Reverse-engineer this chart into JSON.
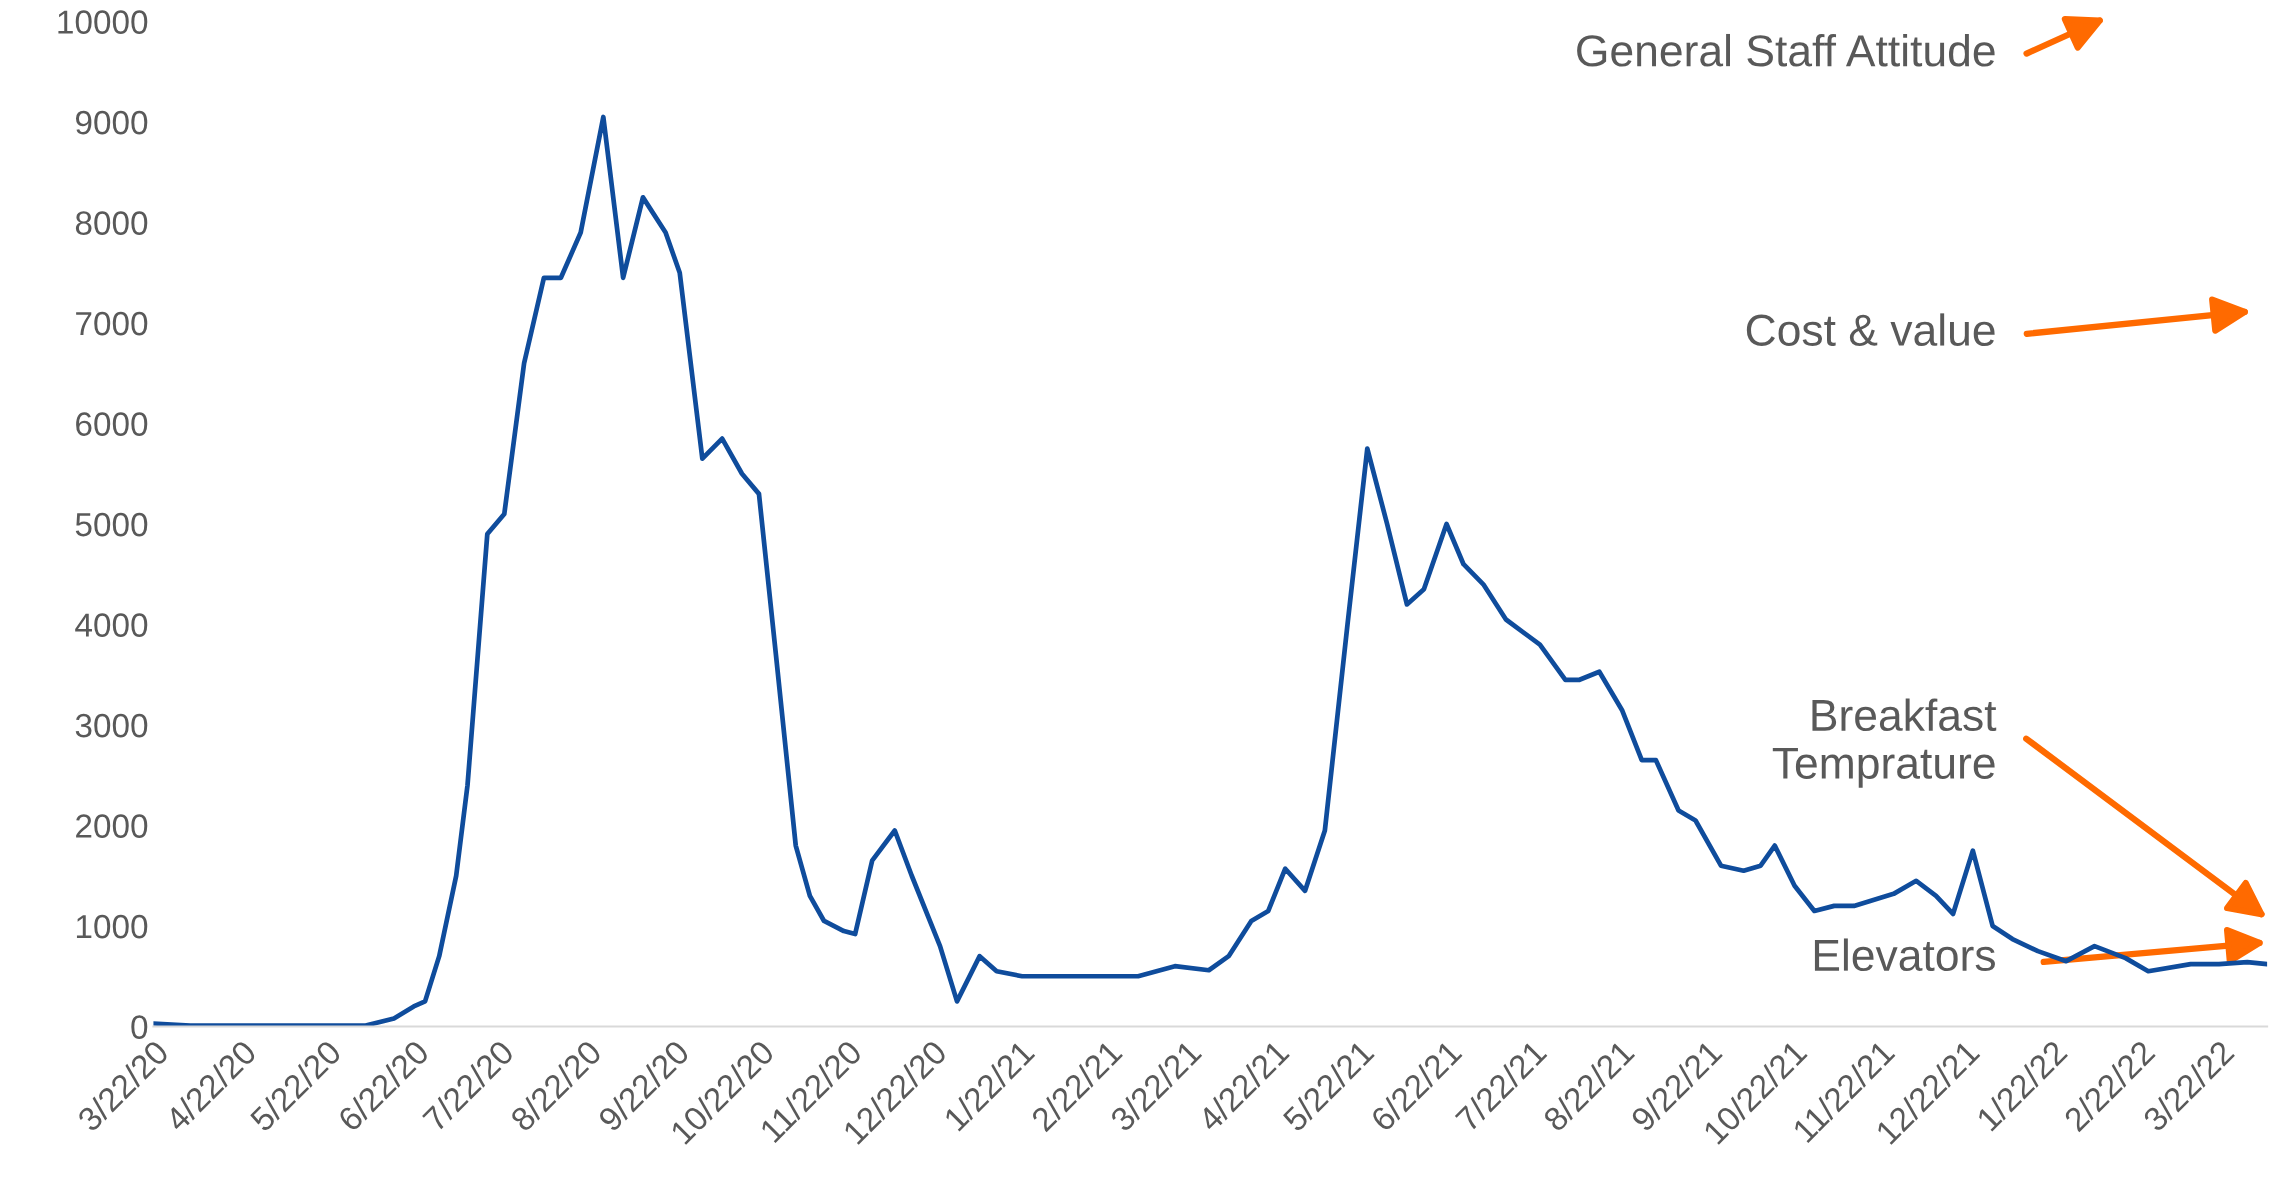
{
  "chart_data": {
    "type": "line",
    "grid": false,
    "legend": false,
    "marker": "none",
    "line_style": "solid",
    "x": [
      "2020-03-22",
      "2020-04-04",
      "2020-06-05",
      "2020-06-15",
      "2020-06-22",
      "2020-06-26",
      "2020-07-01",
      "2020-07-07",
      "2020-07-11",
      "2020-07-18",
      "2020-07-24",
      "2020-07-31",
      "2020-08-07",
      "2020-08-13",
      "2020-08-20",
      "2020-08-28",
      "2020-09-04",
      "2020-09-11",
      "2020-09-19",
      "2020-09-24",
      "2020-10-02",
      "2020-10-09",
      "2020-10-16",
      "2020-10-22",
      "2020-10-28",
      "2020-11-04",
      "2020-11-09",
      "2020-11-14",
      "2020-11-21",
      "2020-11-25",
      "2020-12-01",
      "2020-12-09",
      "2020-12-15",
      "2020-12-25",
      "2020-12-31",
      "2021-01-08",
      "2021-01-14",
      "2021-01-23",
      "2021-02-13",
      "2021-03-05",
      "2021-03-18",
      "2021-03-30",
      "2021-04-06",
      "2021-04-14",
      "2021-04-20",
      "2021-04-26",
      "2021-05-03",
      "2021-05-10",
      "2021-05-18",
      "2021-05-25",
      "2021-06-01",
      "2021-06-08",
      "2021-06-14",
      "2021-06-22",
      "2021-06-28",
      "2021-07-05",
      "2021-07-13",
      "2021-07-25",
      "2021-08-03",
      "2021-08-08",
      "2021-08-15",
      "2021-08-23",
      "2021-08-30",
      "2021-09-04",
      "2021-09-12",
      "2021-09-18",
      "2021-09-27",
      "2021-10-05",
      "2021-10-11",
      "2021-10-16",
      "2021-10-23",
      "2021-10-30",
      "2021-11-06",
      "2021-11-13",
      "2021-11-27",
      "2021-12-05",
      "2021-12-12",
      "2021-12-18",
      "2021-12-25",
      "2022-01-01",
      "2022-01-08",
      "2022-01-17",
      "2022-01-27",
      "2022-02-06",
      "2022-02-17",
      "2022-02-25",
      "2022-03-12",
      "2022-03-22",
      "2022-04-01",
      "2022-04-08"
    ],
    "series": [
      {
        "color": "#0f4c9c",
        "values": [
          30,
          10,
          10,
          80,
          200,
          250,
          700,
          1500,
          2400,
          4900,
          5100,
          6600,
          7450,
          7450,
          7900,
          9050,
          7450,
          8250,
          7900,
          7500,
          5650,
          5850,
          5500,
          5300,
          3700,
          1800,
          1300,
          1050,
          950,
          920,
          1650,
          1950,
          1500,
          800,
          250,
          700,
          550,
          500,
          500,
          500,
          600,
          560,
          700,
          1050,
          1150,
          1570,
          1350,
          1950,
          4000,
          5750,
          5000,
          4200,
          4350,
          5000,
          4600,
          4400,
          4050,
          3800,
          3450,
          3450,
          3530,
          3150,
          2650,
          2650,
          2150,
          2050,
          1600,
          1550,
          1600,
          1800,
          1400,
          1150,
          1200,
          1200,
          1320,
          1450,
          1300,
          1120,
          1750,
          1000,
          870,
          750,
          650,
          800,
          680,
          550,
          620,
          620,
          640,
          620
        ]
      }
    ],
    "xticks": [
      {
        "value": "2020-03-22",
        "label": "3/22/20"
      },
      {
        "value": "2020-04-22",
        "label": "4/22/20"
      },
      {
        "value": "2020-05-22",
        "label": "5/22/20"
      },
      {
        "value": "2020-06-22",
        "label": "6/22/20"
      },
      {
        "value": "2020-07-22",
        "label": "7/22/20"
      },
      {
        "value": "2020-08-22",
        "label": "8/22/20"
      },
      {
        "value": "2020-09-22",
        "label": "9/22/20"
      },
      {
        "value": "2020-10-22",
        "label": "10/22/20"
      },
      {
        "value": "2020-11-22",
        "label": "11/22/20"
      },
      {
        "value": "2020-12-22",
        "label": "12/22/20"
      },
      {
        "value": "2021-01-22",
        "label": "1/22/21"
      },
      {
        "value": "2021-02-22",
        "label": "2/22/21"
      },
      {
        "value": "2021-03-22",
        "label": "3/22/21"
      },
      {
        "value": "2021-04-22",
        "label": "4/22/21"
      },
      {
        "value": "2021-05-22",
        "label": "5/22/21"
      },
      {
        "value": "2021-06-22",
        "label": "6/22/21"
      },
      {
        "value": "2021-07-22",
        "label": "7/22/21"
      },
      {
        "value": "2021-08-22",
        "label": "8/22/21"
      },
      {
        "value": "2021-09-22",
        "label": "9/22/21"
      },
      {
        "value": "2021-10-22",
        "label": "10/22/21"
      },
      {
        "value": "2021-11-22",
        "label": "11/22/21"
      },
      {
        "value": "2021-12-22",
        "label": "12/22/21"
      },
      {
        "value": "2022-01-22",
        "label": "1/22/22"
      },
      {
        "value": "2022-02-22",
        "label": "2/22/22"
      },
      {
        "value": "2022-03-22",
        "label": "3/22/22"
      }
    ],
    "xlim": [
      "2020-03-22",
      "2022-04-08"
    ],
    "ylim": [
      0,
      10000
    ],
    "yticks": [
      0,
      1000,
      2000,
      3000,
      4000,
      5000,
      6000,
      7000,
      8000,
      9000,
      10000
    ],
    "annotations": [
      "General Staff Attitude",
      "Cost & value",
      "Breakfast\nTemprature",
      "Elevators"
    ]
  }
}
